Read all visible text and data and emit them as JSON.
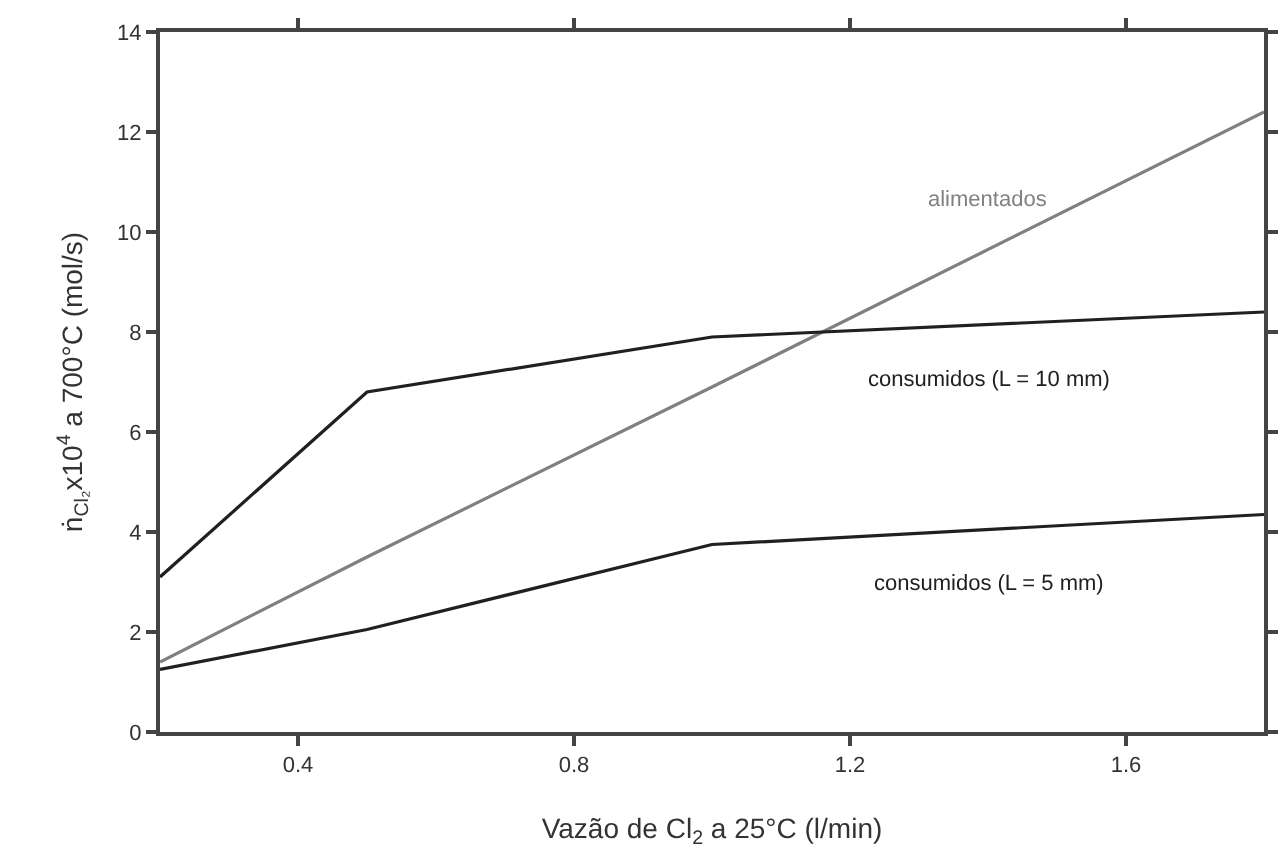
{
  "chart_data": {
    "type": "line",
    "xlabel": "Vazão de Cl$_{2}$ a 25°C (l/min)",
    "ylabel": "ṅ$_{Cl₂}$x10$^{4}$ a 700°C (mol/s)",
    "x": [
      0.2,
      0.5,
      1.0,
      1.8
    ],
    "series": [
      {
        "name": "alimentados",
        "color": "#808080",
        "values": [
          1.4,
          3.5,
          6.9,
          12.4
        ]
      },
      {
        "name": "consumidos (L = 10 mm)",
        "color": "#202020",
        "values": [
          3.1,
          6.8,
          7.9,
          8.4
        ]
      },
      {
        "name": "consumidos (L = 5 mm)",
        "color": "#202020",
        "values": [
          1.25,
          2.05,
          3.75,
          4.35
        ]
      }
    ],
    "xlim": [
      0.2,
      1.8
    ],
    "xticks": [
      0.4,
      0.8,
      1.2,
      1.6
    ],
    "ylim": [
      0,
      14
    ],
    "yticks": [
      0,
      2,
      4,
      6,
      8,
      10,
      12,
      14
    ],
    "grid": false,
    "legend": false,
    "marker": "none",
    "line_style": "solid"
  }
}
